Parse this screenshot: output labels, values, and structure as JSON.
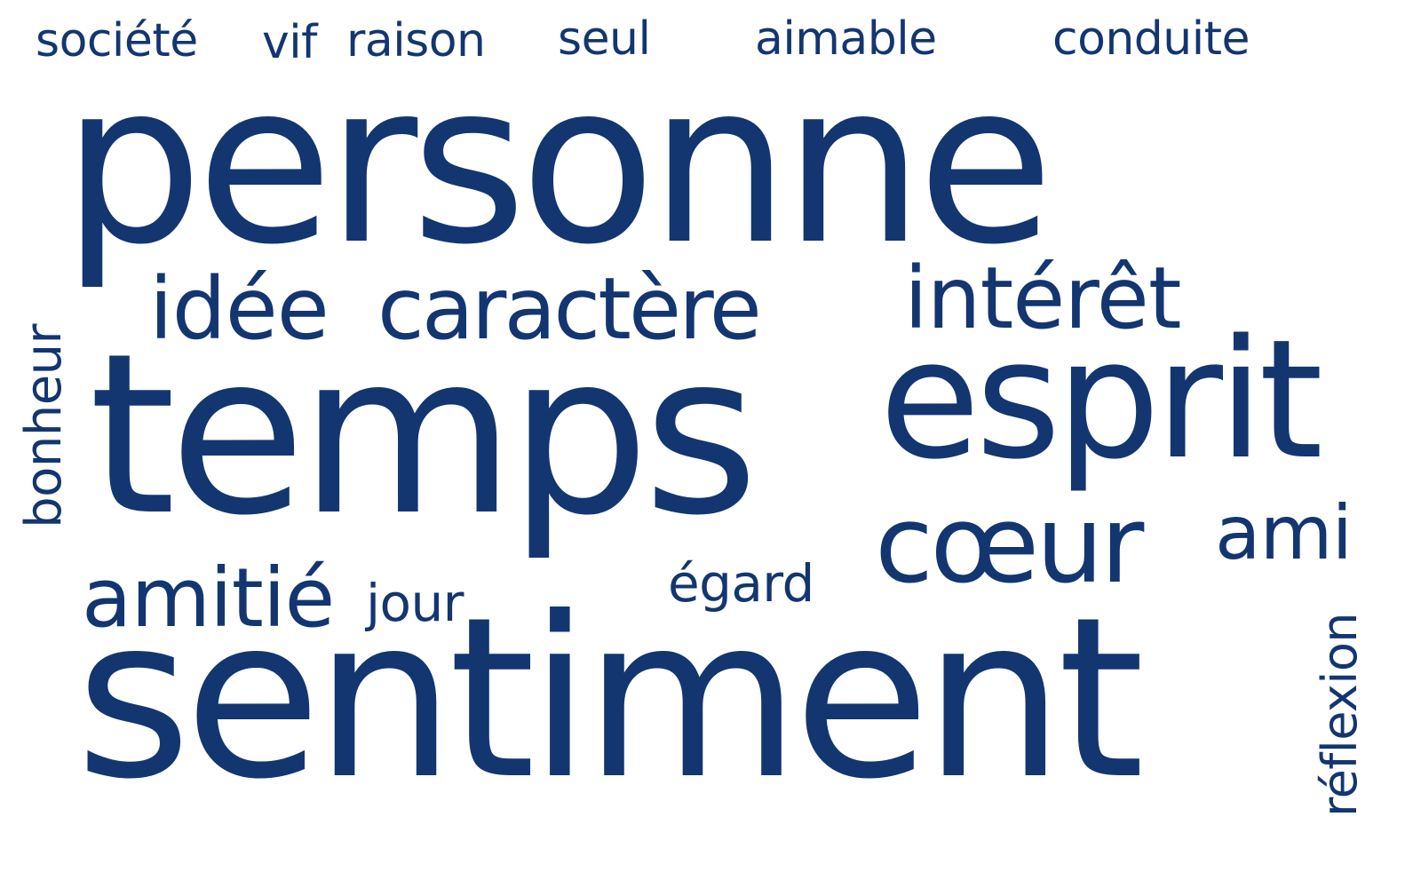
{
  "cloud": {
    "color": "#133671",
    "words": {
      "societe": "société",
      "vif": "vif",
      "raison": "raison",
      "seul": "seul",
      "aimable": "aimable",
      "conduite": "conduite",
      "personne": "personne",
      "idee": "idée",
      "caractere": "caractère",
      "interet": "intérêt",
      "bonheur": "bonheur",
      "temps": "temps",
      "esprit": "esprit",
      "coeur": "cœur",
      "ami": "ami",
      "amitie": "amitié",
      "jour": "jour",
      "egard": "égard",
      "sentiment": "sentiment",
      "reflexion": "réflexion"
    }
  }
}
